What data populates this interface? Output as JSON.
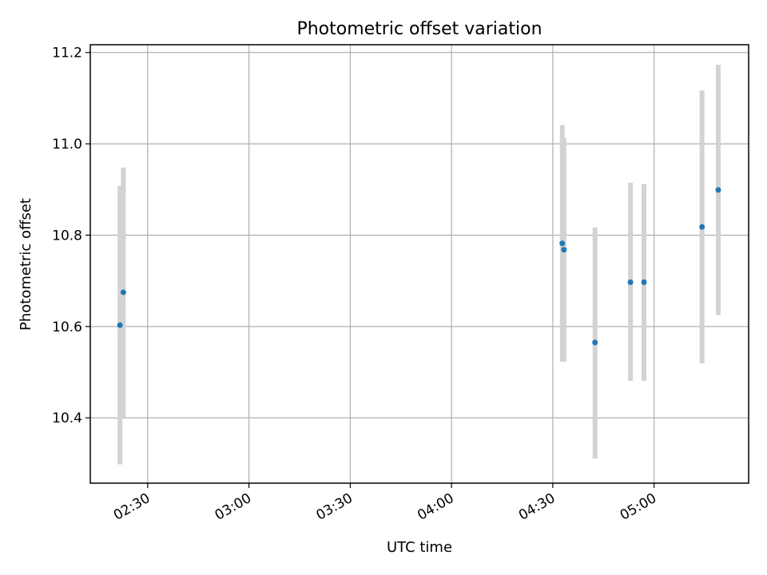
{
  "chart_data": {
    "type": "scatter",
    "title": "Photometric offset variation",
    "xlabel": "UTC time",
    "ylabel": "Photometric offset",
    "x_ticks": [
      "02:30",
      "03:00",
      "03:30",
      "04:00",
      "04:30",
      "05:00"
    ],
    "y_ticks": [
      "10.4",
      "10.6",
      "10.8",
      "11.0",
      "11.2"
    ],
    "xlim": [
      "02:13",
      "05:28"
    ],
    "ylim": [
      10.257,
      11.217
    ],
    "grid": true,
    "colors": {
      "points": "#1f77b4",
      "errorbars": "#d3d3d3",
      "grid": "#b0b0b0"
    },
    "series": [
      {
        "points": [
          {
            "x": "02:21:48",
            "y": 10.603,
            "y_low": 10.298,
            "y_high": 10.908
          },
          {
            "x": "02:22:48",
            "y": 10.675,
            "y_low": 10.401,
            "y_high": 10.948
          },
          {
            "x": "04:32:48",
            "y": 10.782,
            "y_low": 10.523,
            "y_high": 11.041
          },
          {
            "x": "04:33:18",
            "y": 10.768,
            "y_low": 10.523,
            "y_high": 11.013
          },
          {
            "x": "04:42:30",
            "y": 10.565,
            "y_low": 10.311,
            "y_high": 10.817
          },
          {
            "x": "04:53:00",
            "y": 10.697,
            "y_low": 10.481,
            "y_high": 10.915
          },
          {
            "x": "04:57:00",
            "y": 10.697,
            "y_low": 10.481,
            "y_high": 10.912
          },
          {
            "x": "05:14:12",
            "y": 10.818,
            "y_low": 10.519,
            "y_high": 11.117
          },
          {
            "x": "05:19:00",
            "y": 10.899,
            "y_low": 10.625,
            "y_high": 11.173
          }
        ]
      }
    ]
  }
}
